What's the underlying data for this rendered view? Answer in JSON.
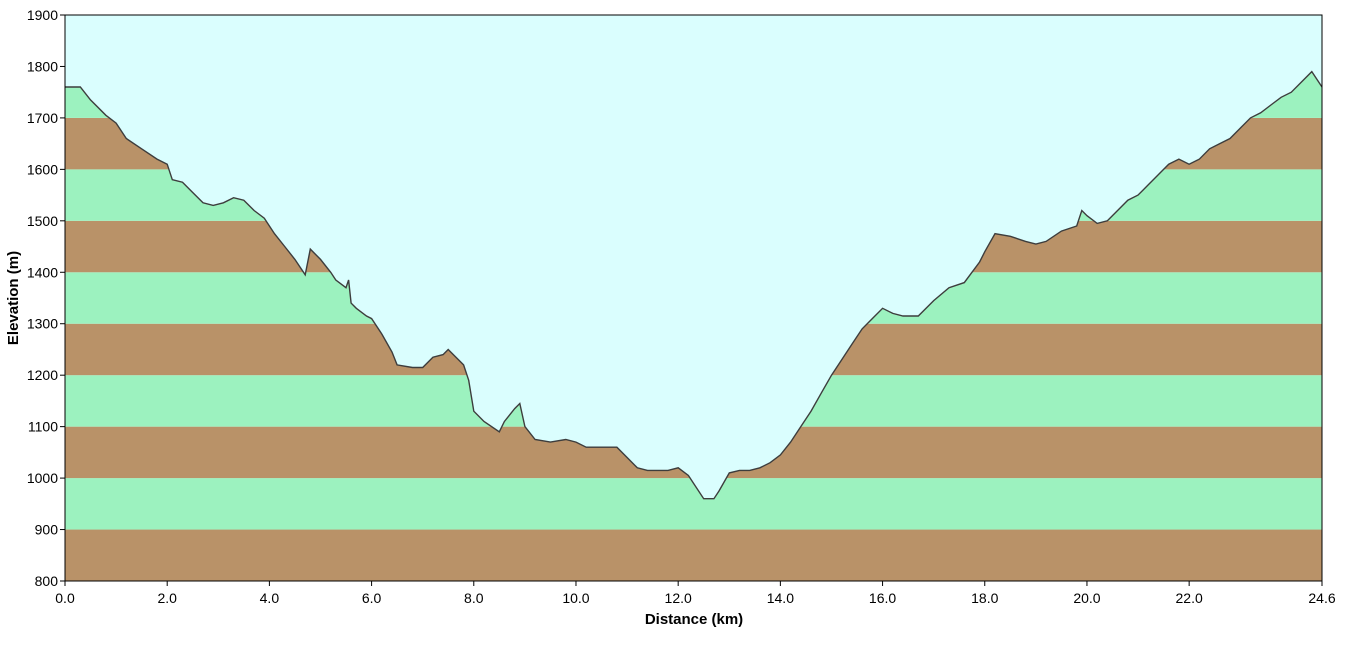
{
  "chart_data": {
    "type": "area",
    "title": "",
    "xlabel": "Distance   (km)",
    "ylabel": "Elevation (m)",
    "xlim": [
      0,
      24.6
    ],
    "ylim": [
      800,
      1900
    ],
    "x_ticks": [
      "0.0",
      "2.0",
      "4.0",
      "6.0",
      "8.0",
      "10.0",
      "12.0",
      "14.0",
      "16.0",
      "18.0",
      "20.0",
      "22.0",
      "24.6"
    ],
    "x_tick_values": [
      0,
      2,
      4,
      6,
      8,
      10,
      12,
      14,
      16,
      18,
      20,
      22,
      24.6
    ],
    "y_ticks": [
      "800",
      "900",
      "1000",
      "1100",
      "1200",
      "1300",
      "1400",
      "1500",
      "1600",
      "1700",
      "1800",
      "1900"
    ],
    "y_tick_values": [
      800,
      900,
      1000,
      1100,
      1200,
      1300,
      1400,
      1500,
      1600,
      1700,
      1800,
      1900
    ],
    "grid": false,
    "legend": "none",
    "colors": {
      "sky": "#dafefe",
      "band_brown": "#b99268",
      "band_green": "#9cf2bf",
      "profile_line": "#3d3d3d"
    },
    "series": [
      {
        "x": [
          0,
          0.3,
          0.5,
          0.8,
          1.0,
          1.2,
          1.5,
          1.8,
          2.0,
          2.1,
          2.3,
          2.5,
          2.7,
          2.9,
          3.1,
          3.3,
          3.5,
          3.7,
          3.9,
          4.1,
          4.3,
          4.5,
          4.7,
          4.8,
          5.0,
          5.2,
          5.3,
          5.5,
          5.55,
          5.6,
          5.7,
          5.9,
          6.0,
          6.2,
          6.4,
          6.5,
          6.8,
          7.0,
          7.2,
          7.4,
          7.5,
          7.8,
          7.9,
          8.0,
          8.2,
          8.5,
          8.6,
          8.8,
          8.9,
          9.0,
          9.2,
          9.5,
          9.8,
          10.0,
          10.2,
          10.5,
          10.8,
          11.0,
          11.2,
          11.4,
          11.6,
          11.8,
          12.0,
          12.2,
          12.3,
          12.5,
          12.7,
          12.8,
          13.0,
          13.2,
          13.4,
          13.6,
          13.8,
          14.0,
          14.2,
          14.4,
          14.6,
          14.8,
          15.0,
          15.2,
          15.4,
          15.6,
          15.8,
          16.0,
          16.2,
          16.4,
          16.7,
          17.0,
          17.3,
          17.6,
          17.9,
          18.0,
          18.2,
          18.5,
          18.8,
          19.0,
          19.2,
          19.5,
          19.8,
          19.9,
          20.0,
          20.2,
          20.4,
          20.6,
          20.8,
          21.0,
          21.2,
          21.4,
          21.6,
          21.8,
          22.0,
          22.2,
          22.4,
          22.6,
          22.8,
          23.0,
          23.2,
          23.4,
          23.6,
          23.8,
          24.0,
          24.2,
          24.4,
          24.6
        ],
        "y": [
          1760,
          1760,
          1735,
          1705,
          1690,
          1660,
          1640,
          1620,
          1610,
          1580,
          1575,
          1555,
          1535,
          1530,
          1535,
          1545,
          1540,
          1520,
          1505,
          1475,
          1450,
          1425,
          1395,
          1445,
          1425,
          1400,
          1385,
          1370,
          1385,
          1340,
          1330,
          1315,
          1310,
          1280,
          1245,
          1220,
          1215,
          1215,
          1235,
          1240,
          1250,
          1220,
          1190,
          1130,
          1110,
          1090,
          1110,
          1135,
          1145,
          1100,
          1075,
          1070,
          1075,
          1070,
          1060,
          1060,
          1060,
          1040,
          1020,
          1015,
          1015,
          1015,
          1020,
          1005,
          990,
          960,
          960,
          975,
          1010,
          1015,
          1015,
          1020,
          1030,
          1045,
          1070,
          1100,
          1130,
          1165,
          1200,
          1230,
          1260,
          1290,
          1310,
          1330,
          1320,
          1315,
          1315,
          1345,
          1370,
          1380,
          1420,
          1440,
          1475,
          1470,
          1460,
          1455,
          1460,
          1480,
          1490,
          1520,
          1510,
          1495,
          1500,
          1520,
          1540,
          1550,
          1570,
          1590,
          1610,
          1620,
          1610,
          1620,
          1640,
          1650,
          1660,
          1680,
          1700,
          1710,
          1725,
          1740,
          1750,
          1770,
          1790,
          1760
        ]
      }
    ]
  }
}
